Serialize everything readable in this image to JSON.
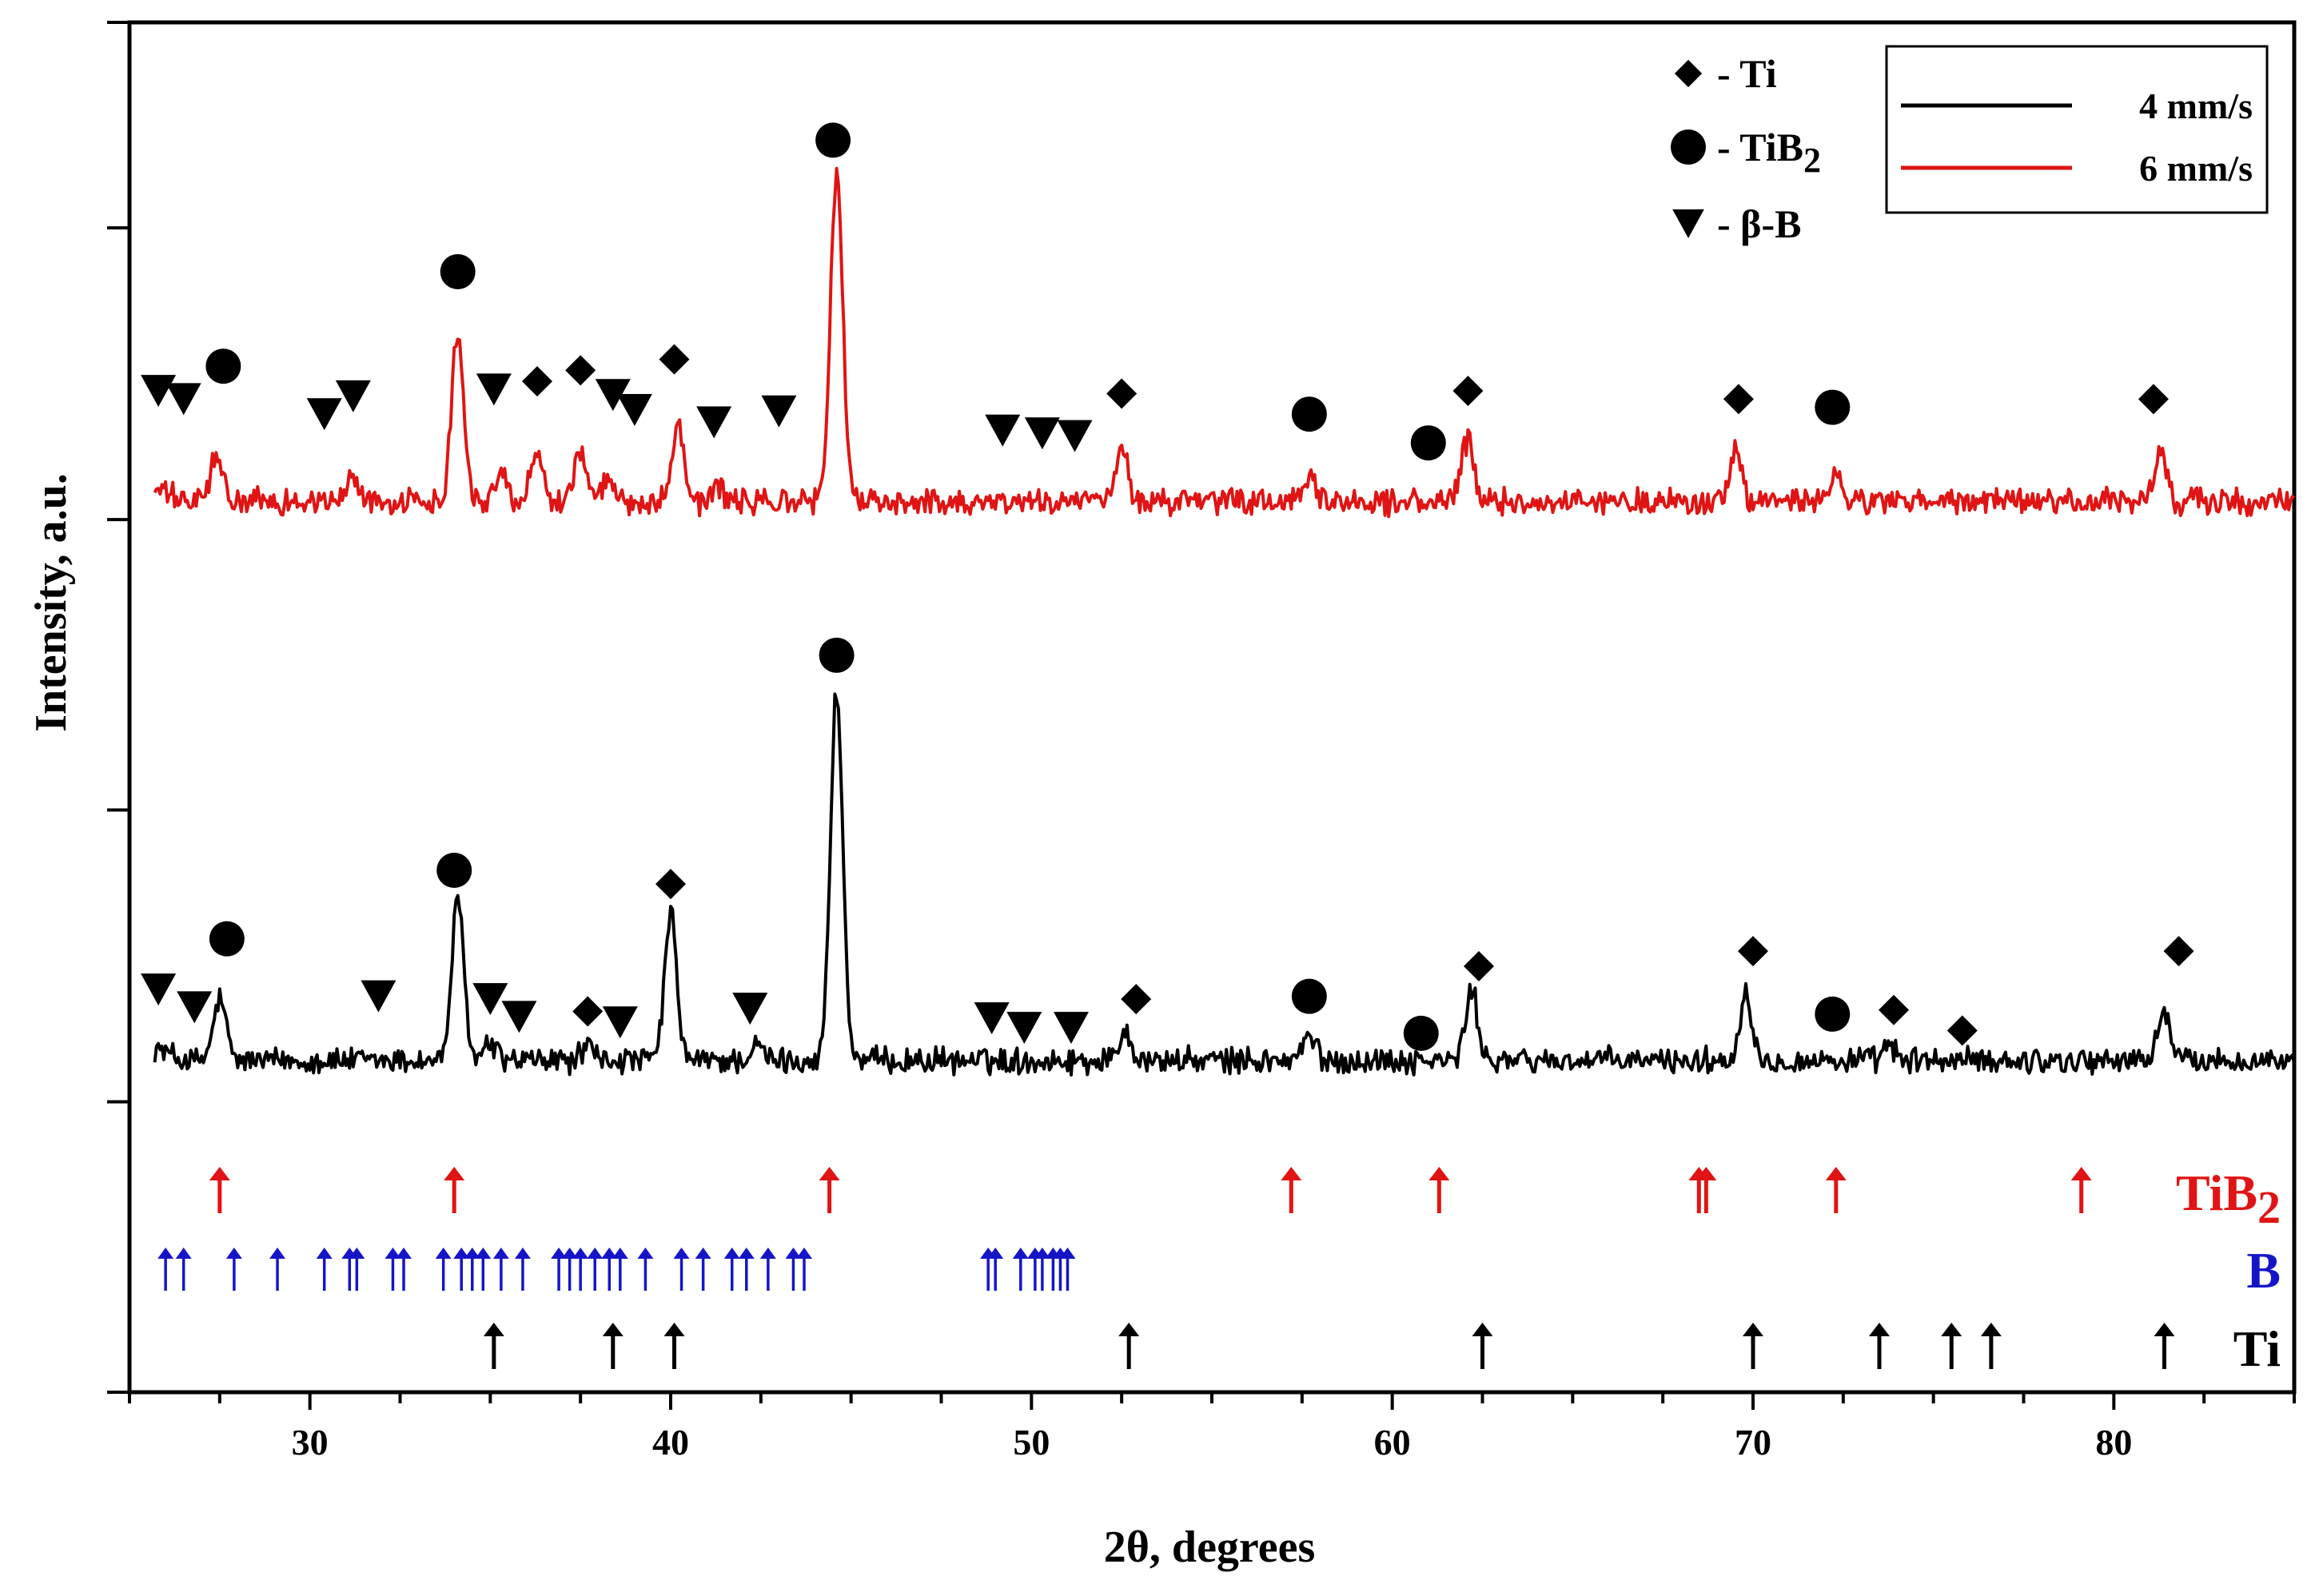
{
  "chart_data": {
    "type": "line",
    "xlabel": "2θ, degrees",
    "ylabel": "Intensity, a.u.",
    "xlim": [
      25,
      85
    ],
    "ylim": [
      0,
      100
    ],
    "x_ticks": [
      30,
      40,
      50,
      60,
      70,
      80
    ],
    "x_minor_step": 2.5,
    "y_ticks": [
      0,
      21.2,
      42.5,
      63.7,
      85,
      100
    ],
    "colors": {
      "ti_ref": "#000000",
      "b_ref": "#1515c8",
      "tib2_ref": "#e01414",
      "line_4": "#000000",
      "line_6": "#e01414"
    },
    "series": [
      {
        "name": "4 mm/s",
        "color": "#000000",
        "baseline": 24.2,
        "noise": 0.8,
        "x_start": 25.7,
        "x_end": 85,
        "peaks": [
          {
            "x": 27.5,
            "h": 4.5
          },
          {
            "x": 34.1,
            "h": 11.5
          },
          {
            "x": 35.0,
            "h": 1.2
          },
          {
            "x": 37.7,
            "h": 1.0
          },
          {
            "x": 40.0,
            "h": 10.5
          },
          {
            "x": 42.4,
            "h": 1.0
          },
          {
            "x": 44.6,
            "h": 27.0
          },
          {
            "x": 52.6,
            "h": 2.2
          },
          {
            "x": 57.7,
            "h": 1.8
          },
          {
            "x": 62.2,
            "h": 5.0
          },
          {
            "x": 69.8,
            "h": 5.0
          },
          {
            "x": 73.8,
            "h": 1.0
          },
          {
            "x": 81.4,
            "h": 3.8
          }
        ]
      },
      {
        "name": "6 mm/s",
        "color": "#e01414",
        "baseline": 65.0,
        "noise": 0.8,
        "x_start": 25.7,
        "x_end": 85,
        "peaks": [
          {
            "x": 27.4,
            "h": 3.2
          },
          {
            "x": 31.2,
            "h": 1.8
          },
          {
            "x": 34.1,
            "h": 12.5
          },
          {
            "x": 35.3,
            "h": 2.0
          },
          {
            "x": 36.3,
            "h": 3.8
          },
          {
            "x": 37.5,
            "h": 3.8
          },
          {
            "x": 38.3,
            "h": 1.5
          },
          {
            "x": 40.2,
            "h": 5.8
          },
          {
            "x": 41.3,
            "h": 1.0
          },
          {
            "x": 44.6,
            "h": 24.0
          },
          {
            "x": 52.5,
            "h": 3.8
          },
          {
            "x": 57.7,
            "h": 1.5
          },
          {
            "x": 62.1,
            "h": 4.5
          },
          {
            "x": 69.5,
            "h": 3.5
          },
          {
            "x": 72.3,
            "h": 1.8
          },
          {
            "x": 81.3,
            "h": 3.5
          }
        ]
      }
    ],
    "markers": [
      {
        "series": "4 mm/s",
        "phase": "beta-B",
        "x": 25.8,
        "y": 29.4
      },
      {
        "series": "4 mm/s",
        "phase": "beta-B",
        "x": 26.8,
        "y": 28.1
      },
      {
        "series": "4 mm/s",
        "phase": "TiB2",
        "x": 27.7,
        "y": 33.1
      },
      {
        "series": "4 mm/s",
        "phase": "beta-B",
        "x": 31.9,
        "y": 28.9
      },
      {
        "series": "4 mm/s",
        "phase": "TiB2",
        "x": 34.0,
        "y": 38.1
      },
      {
        "series": "4 mm/s",
        "phase": "beta-B",
        "x": 35.0,
        "y": 28.7
      },
      {
        "series": "4 mm/s",
        "phase": "beta-B",
        "x": 35.8,
        "y": 27.4
      },
      {
        "series": "4 mm/s",
        "phase": "Ti",
        "x": 37.7,
        "y": 27.8
      },
      {
        "series": "4 mm/s",
        "phase": "beta-B",
        "x": 38.6,
        "y": 27.0
      },
      {
        "series": "4 mm/s",
        "phase": "Ti",
        "x": 40.0,
        "y": 37.1
      },
      {
        "series": "4 mm/s",
        "phase": "beta-B",
        "x": 42.2,
        "y": 28.0
      },
      {
        "series": "4 mm/s",
        "phase": "TiB2",
        "x": 44.6,
        "y": 53.8
      },
      {
        "series": "4 mm/s",
        "phase": "beta-B",
        "x": 48.9,
        "y": 27.3
      },
      {
        "series": "4 mm/s",
        "phase": "beta-B",
        "x": 49.8,
        "y": 26.6
      },
      {
        "series": "4 mm/s",
        "phase": "beta-B",
        "x": 51.1,
        "y": 26.6
      },
      {
        "series": "4 mm/s",
        "phase": "Ti",
        "x": 52.9,
        "y": 28.7
      },
      {
        "series": "4 mm/s",
        "phase": "TiB2",
        "x": 57.7,
        "y": 28.9
      },
      {
        "series": "4 mm/s",
        "phase": "TiB2",
        "x": 60.8,
        "y": 26.2
      },
      {
        "series": "4 mm/s",
        "phase": "Ti",
        "x": 62.4,
        "y": 31.1
      },
      {
        "series": "4 mm/s",
        "phase": "Ti",
        "x": 70.0,
        "y": 32.2
      },
      {
        "series": "4 mm/s",
        "phase": "TiB2",
        "x": 72.2,
        "y": 27.6
      },
      {
        "series": "4 mm/s",
        "phase": "Ti",
        "x": 73.9,
        "y": 27.9
      },
      {
        "series": "4 mm/s",
        "phase": "Ti",
        "x": 75.8,
        "y": 26.4
      },
      {
        "series": "4 mm/s",
        "phase": "Ti",
        "x": 81.8,
        "y": 32.2
      },
      {
        "series": "6 mm/s",
        "phase": "beta-B",
        "x": 25.8,
        "y": 73.1
      },
      {
        "series": "6 mm/s",
        "phase": "beta-B",
        "x": 26.5,
        "y": 72.5
      },
      {
        "series": "6 mm/s",
        "phase": "TiB2",
        "x": 27.6,
        "y": 74.9
      },
      {
        "series": "6 mm/s",
        "phase": "beta-B",
        "x": 30.4,
        "y": 71.4
      },
      {
        "series": "6 mm/s",
        "phase": "beta-B",
        "x": 31.2,
        "y": 72.7
      },
      {
        "series": "6 mm/s",
        "phase": "TiB2",
        "x": 34.1,
        "y": 81.8
      },
      {
        "series": "6 mm/s",
        "phase": "beta-B",
        "x": 35.1,
        "y": 73.2
      },
      {
        "series": "6 mm/s",
        "phase": "Ti",
        "x": 36.3,
        "y": 73.8
      },
      {
        "series": "6 mm/s",
        "phase": "Ti",
        "x": 37.5,
        "y": 74.6
      },
      {
        "series": "6 mm/s",
        "phase": "beta-B",
        "x": 38.4,
        "y": 72.8
      },
      {
        "series": "6 mm/s",
        "phase": "beta-B",
        "x": 39.0,
        "y": 71.7
      },
      {
        "series": "6 mm/s",
        "phase": "Ti",
        "x": 40.1,
        "y": 75.4
      },
      {
        "series": "6 mm/s",
        "phase": "beta-B",
        "x": 41.2,
        "y": 70.8
      },
      {
        "series": "6 mm/s",
        "phase": "beta-B",
        "x": 43.0,
        "y": 71.6
      },
      {
        "series": "6 mm/s",
        "phase": "TiB2",
        "x": 44.5,
        "y": 91.4
      },
      {
        "series": "6 mm/s",
        "phase": "beta-B",
        "x": 49.2,
        "y": 70.2
      },
      {
        "series": "6 mm/s",
        "phase": "beta-B",
        "x": 50.3,
        "y": 70.0
      },
      {
        "series": "6 mm/s",
        "phase": "beta-B",
        "x": 51.2,
        "y": 69.8
      },
      {
        "series": "6 mm/s",
        "phase": "Ti",
        "x": 52.5,
        "y": 72.9
      },
      {
        "series": "6 mm/s",
        "phase": "TiB2",
        "x": 57.7,
        "y": 71.4
      },
      {
        "series": "6 mm/s",
        "phase": "TiB2",
        "x": 61.0,
        "y": 69.3
      },
      {
        "series": "6 mm/s",
        "phase": "Ti",
        "x": 62.1,
        "y": 73.1
      },
      {
        "series": "6 mm/s",
        "phase": "Ti",
        "x": 69.6,
        "y": 72.5
      },
      {
        "series": "6 mm/s",
        "phase": "TiB2",
        "x": 72.2,
        "y": 71.9
      },
      {
        "series": "6 mm/s",
        "phase": "Ti",
        "x": 81.1,
        "y": 72.5
      }
    ],
    "marker_legend": [
      {
        "phase": "Ti",
        "label": "- Ti"
      },
      {
        "phase": "TiB2",
        "label": "- TiB",
        "label_sub": "2"
      },
      {
        "phase": "beta-B",
        "label": "- β-B"
      }
    ],
    "legend": [
      {
        "name": "4 mm/s",
        "color": "#000000"
      },
      {
        "name": "6 mm/s",
        "color": "#e01414"
      }
    ],
    "reference_rows": [
      {
        "phase": "TiB2",
        "label": "TiB",
        "label_sub": "2",
        "color": "#e01414",
        "positions": [
          27.5,
          34.0,
          44.4,
          57.2,
          61.3,
          68.5,
          68.7,
          72.3,
          79.1
        ]
      },
      {
        "phase": "B",
        "label": "B",
        "color": "#1515c8",
        "positions": [
          26.0,
          26.5,
          27.9,
          29.1,
          30.4,
          31.1,
          31.3,
          32.3,
          32.6,
          33.7,
          34.2,
          34.5,
          34.8,
          35.3,
          35.9,
          36.9,
          37.2,
          37.5,
          37.9,
          38.3,
          38.6,
          39.3,
          40.3,
          40.9,
          41.7,
          42.1,
          42.7,
          43.4,
          43.7,
          48.8,
          49.0,
          49.7,
          50.1,
          50.3,
          50.6,
          50.8,
          51.0
        ]
      },
      {
        "phase": "Ti",
        "label": "Ti",
        "color": "#000000",
        "positions": [
          35.1,
          38.4,
          40.1,
          52.7,
          62.5,
          70.0,
          73.5,
          75.5,
          76.6,
          81.4
        ]
      }
    ]
  }
}
